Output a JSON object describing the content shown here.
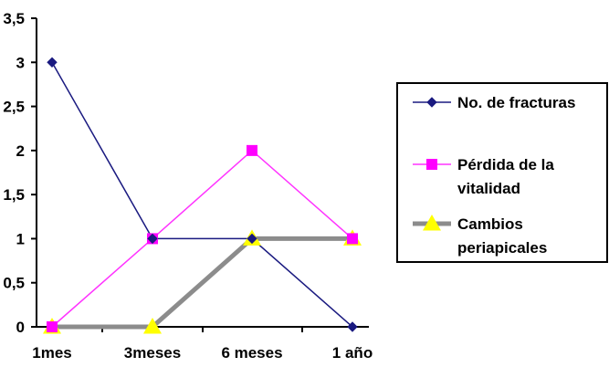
{
  "chart_data": {
    "type": "line",
    "categories": [
      "1mes",
      "3meses",
      "6 meses",
      "1 año"
    ],
    "y_ticks": [
      "0",
      "0,5",
      "1",
      "1,5",
      "2",
      "2,5",
      "3",
      "3,5"
    ],
    "y_tick_values": [
      0,
      0.5,
      1,
      1.5,
      2,
      2.5,
      3,
      3.5
    ],
    "ylim": [
      0,
      3.5
    ],
    "grid": false,
    "legend_position": "right",
    "series": [
      {
        "name": "No. de fracturas",
        "legend_lines": [
          "No. de fracturas"
        ],
        "values": [
          3,
          1,
          1,
          0
        ],
        "color": "#1a1a80",
        "marker": "diamond",
        "marker_color": "#1a1a80"
      },
      {
        "name": "Pérdida de la vitalidad",
        "legend_lines": [
          "Pérdida de la",
          "vitalidad"
        ],
        "values": [
          0,
          1,
          2,
          1
        ],
        "color": "#ff33ff",
        "marker": "square",
        "marker_color": "#ff00ff"
      },
      {
        "name": "Cambios periapicales",
        "legend_lines": [
          "Cambios",
          "periapicales"
        ],
        "values": [
          0,
          0,
          1,
          1
        ],
        "color": "#8c8c8c",
        "marker": "triangle",
        "marker_color": "#ffff00"
      }
    ]
  }
}
